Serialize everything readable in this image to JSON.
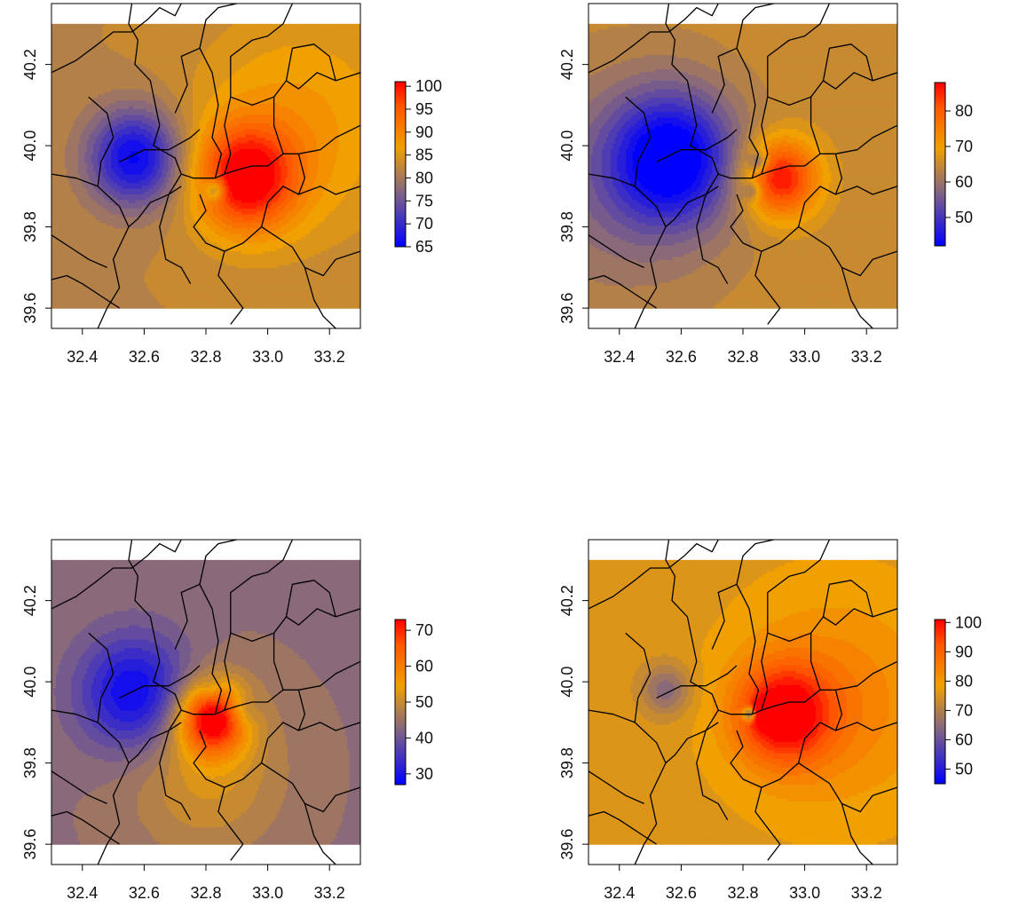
{
  "chart_data": [
    {
      "type": "heatmap",
      "title": "",
      "xlabel": "",
      "ylabel": "",
      "xlim": [
        32.3,
        33.3
      ],
      "ylim": [
        39.55,
        40.35
      ],
      "x_ticks": [
        "32.4",
        "32.6",
        "32.8",
        "33.0",
        "33.2"
      ],
      "y_ticks": [
        "39.6",
        "39.8",
        "40.0",
        "40.2"
      ],
      "fill_extent": {
        "x": [
          32.3,
          33.3
        ],
        "y": [
          39.6,
          40.3
        ]
      },
      "base_value": 82,
      "value_range": [
        65,
        101
      ],
      "colorbar_ticks": [
        "65",
        "70",
        "75",
        "80",
        "85",
        "90",
        "95",
        "100"
      ],
      "hotspots": [
        {
          "x": 32.57,
          "y": 39.97,
          "value": 65,
          "radius": 0.15
        },
        {
          "x": 32.93,
          "y": 39.92,
          "value": 101,
          "radius": 0.16
        },
        {
          "x": 33.1,
          "y": 40.05,
          "value": 88,
          "radius": 0.35
        },
        {
          "x": 32.83,
          "y": 39.89,
          "value": 73,
          "radius": 0.03
        },
        {
          "x": 32.82,
          "y": 39.89,
          "value": 80,
          "radius": 0.05
        }
      ]
    },
    {
      "type": "heatmap",
      "title": "",
      "xlabel": "",
      "ylabel": "",
      "xlim": [
        32.3,
        33.3
      ],
      "ylim": [
        39.55,
        40.35
      ],
      "x_ticks": [
        "32.4",
        "32.6",
        "32.8",
        "33.0",
        "33.2"
      ],
      "y_ticks": [
        "39.6",
        "39.8",
        "40.0",
        "40.2"
      ],
      "fill_extent": {
        "x": [
          32.3,
          33.3
        ],
        "y": [
          39.6,
          40.3
        ]
      },
      "base_value": 65,
      "value_range": [
        42,
        88
      ],
      "colorbar_ticks": [
        "50",
        "60",
        "70",
        "80"
      ],
      "hotspots": [
        {
          "x": 32.57,
          "y": 39.97,
          "value": 42,
          "radius": 0.2
        },
        {
          "x": 32.4,
          "y": 39.9,
          "value": 58,
          "radius": 0.35
        },
        {
          "x": 32.92,
          "y": 39.92,
          "value": 88,
          "radius": 0.12
        },
        {
          "x": 32.85,
          "y": 39.96,
          "value": 52,
          "radius": 0.03
        },
        {
          "x": 32.83,
          "y": 39.89,
          "value": 56,
          "radius": 0.03
        }
      ]
    },
    {
      "type": "heatmap",
      "title": "",
      "xlabel": "",
      "ylabel": "",
      "xlim": [
        32.3,
        33.3
      ],
      "ylim": [
        39.55,
        40.35
      ],
      "x_ticks": [
        "32.4",
        "32.6",
        "32.8",
        "33.0",
        "33.2"
      ],
      "y_ticks": [
        "39.6",
        "39.8",
        "40.0",
        "40.2"
      ],
      "fill_extent": {
        "x": [
          32.3,
          33.3
        ],
        "y": [
          39.6,
          40.3
        ]
      },
      "base_value": 44,
      "value_range": [
        27,
        73
      ],
      "colorbar_ticks": [
        "30",
        "40",
        "50",
        "60",
        "70"
      ],
      "hotspots": [
        {
          "x": 32.57,
          "y": 39.97,
          "value": 27,
          "radius": 0.18
        },
        {
          "x": 32.82,
          "y": 39.91,
          "value": 73,
          "radius": 0.11
        },
        {
          "x": 32.8,
          "y": 39.78,
          "value": 52,
          "radius": 0.25
        },
        {
          "x": 32.92,
          "y": 39.93,
          "value": 38,
          "radius": 0.05
        },
        {
          "x": 32.82,
          "y": 39.98,
          "value": 40,
          "radius": 0.04
        }
      ]
    },
    {
      "type": "heatmap",
      "title": "",
      "xlabel": "",
      "ylabel": "",
      "xlim": [
        32.3,
        33.3
      ],
      "ylim": [
        39.55,
        40.35
      ],
      "x_ticks": [
        "32.4",
        "32.6",
        "32.8",
        "33.0",
        "33.2"
      ],
      "y_ticks": [
        "39.6",
        "39.8",
        "40.0",
        "40.2"
      ],
      "fill_extent": {
        "x": [
          32.3,
          33.3
        ],
        "y": [
          39.6,
          40.3
        ]
      },
      "base_value": 76,
      "value_range": [
        45,
        101
      ],
      "colorbar_ticks": [
        "50",
        "60",
        "70",
        "80",
        "90",
        "100"
      ],
      "hotspots": [
        {
          "x": 32.93,
          "y": 39.92,
          "value": 101,
          "radius": 0.15
        },
        {
          "x": 33.1,
          "y": 39.95,
          "value": 85,
          "radius": 0.32
        },
        {
          "x": 32.55,
          "y": 39.98,
          "value": 64,
          "radius": 0.08
        },
        {
          "x": 32.82,
          "y": 39.92,
          "value": 45,
          "radius": 0.02
        },
        {
          "x": 32.87,
          "y": 39.92,
          "value": 88,
          "radius": 0.04
        }
      ]
    }
  ]
}
